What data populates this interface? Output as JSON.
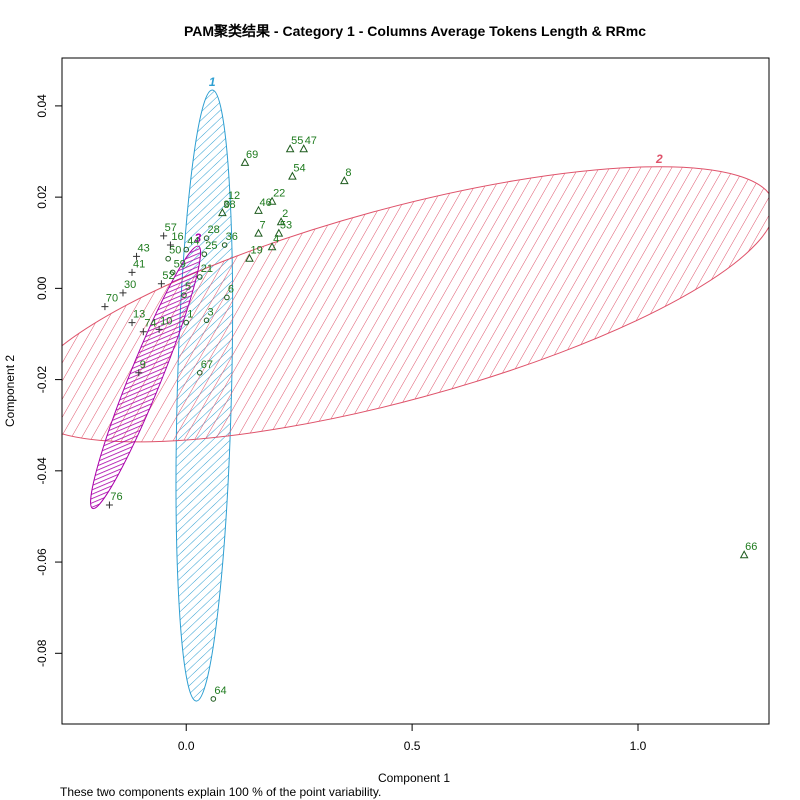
{
  "chart_data": {
    "type": "scatter",
    "title": "PAM聚类结果 - Category  1  - Columns  Average Tokens Length  &  RRmc",
    "xlabel": "Component 1",
    "ylabel": "Component 2",
    "footnote": "These two components explain 100 % of the point variability.",
    "xlim": [
      -0.275,
      1.29
    ],
    "ylim": [
      -0.0955,
      0.0505
    ],
    "x_ticks": [
      0.0,
      0.5,
      1.0
    ],
    "x_tick_labels": [
      "0.0",
      "0.5",
      "1.0"
    ],
    "y_ticks": [
      0.04,
      0.02,
      0.0,
      -0.02,
      -0.04,
      -0.06,
      -0.08
    ],
    "y_tick_labels": [
      "0.04",
      "0.02",
      "0.00",
      "-0.02",
      "-0.04",
      "-0.06",
      "-0.08"
    ],
    "colors": {
      "cluster_1": "#2E9FD2",
      "cluster_2": "#DF536B",
      "cluster_3": "#AA00AA",
      "label_color": "#1E7B1E",
      "point_color": "#1E5B1E"
    },
    "clusters": [
      {
        "id": "1",
        "label": "1",
        "color": "#2E9FD2",
        "ellipse": {
          "center": [
            0.04,
            -0.0235
          ],
          "rx": 0.06,
          "ry": 0.067,
          "angle_deg": -1.5
        },
        "marker": "circle",
        "points": [
          {
            "id": "64",
            "x": 0.06,
            "y": -0.09
          },
          {
            "id": "67",
            "x": 0.03,
            "y": -0.0185
          },
          {
            "id": "3",
            "x": 0.045,
            "y": -0.007
          },
          {
            "id": "6",
            "x": 0.09,
            "y": -0.002
          },
          {
            "id": "1",
            "x": 0.0,
            "y": -0.0075
          },
          {
            "id": "12",
            "x": 0.09,
            "y": 0.0185
          },
          {
            "id": "36",
            "x": 0.085,
            "y": 0.0095
          },
          {
            "id": "28",
            "x": 0.045,
            "y": 0.011
          },
          {
            "id": "25",
            "x": 0.04,
            "y": 0.0075
          },
          {
            "id": "44",
            "x": 0.0,
            "y": 0.0085
          },
          {
            "id": "50",
            "x": -0.04,
            "y": 0.0065
          },
          {
            "id": "59",
            "x": -0.03,
            "y": 0.0035
          },
          {
            "id": "21",
            "x": 0.03,
            "y": 0.0025
          },
          {
            "id": "5",
            "x": -0.005,
            "y": -0.0015
          }
        ]
      },
      {
        "id": "2",
        "label": "2",
        "color": "#DF536B",
        "ellipse": {
          "center": [
            0.47,
            -0.0035
          ],
          "rx": 0.86,
          "ry": 0.021,
          "angle_deg": 15.2
        },
        "marker": "triangle",
        "points": [
          {
            "id": "66",
            "x": 1.235,
            "y": -0.0585
          },
          {
            "id": "8",
            "x": 0.35,
            "y": 0.0235
          },
          {
            "id": "55",
            "x": 0.23,
            "y": 0.0305
          },
          {
            "id": "47",
            "x": 0.26,
            "y": 0.0305
          },
          {
            "id": "69",
            "x": 0.13,
            "y": 0.0275
          },
          {
            "id": "54",
            "x": 0.235,
            "y": 0.0245
          },
          {
            "id": "22",
            "x": 0.19,
            "y": 0.019
          },
          {
            "id": "46",
            "x": 0.16,
            "y": 0.017
          },
          {
            "id": "2",
            "x": 0.21,
            "y": 0.0145
          },
          {
            "id": "53",
            "x": 0.205,
            "y": 0.012
          },
          {
            "id": "7",
            "x": 0.16,
            "y": 0.012
          },
          {
            "id": "4",
            "x": 0.19,
            "y": 0.009
          },
          {
            "id": "19",
            "x": 0.14,
            "y": 0.0065
          },
          {
            "id": "38",
            "x": 0.08,
            "y": 0.0165
          }
        ]
      },
      {
        "id": "3",
        "label": "3",
        "color": "#AA00AA",
        "ellipse": {
          "center": [
            -0.09,
            -0.0195
          ],
          "rx": 0.035,
          "ry": 0.031,
          "angle_deg": -22
        },
        "marker": "plus",
        "points": [
          {
            "id": "76",
            "x": -0.17,
            "y": -0.0475
          },
          {
            "id": "9",
            "x": -0.105,
            "y": -0.0185
          },
          {
            "id": "13",
            "x": -0.12,
            "y": -0.0075
          },
          {
            "id": "70",
            "x": -0.18,
            "y": -0.004
          },
          {
            "id": "74",
            "x": -0.095,
            "y": -0.0095
          },
          {
            "id": "10",
            "x": -0.06,
            "y": -0.009
          },
          {
            "id": "43",
            "x": -0.11,
            "y": 0.007
          },
          {
            "id": "57",
            "x": -0.05,
            "y": 0.0115
          },
          {
            "id": "16",
            "x": -0.035,
            "y": 0.0095
          },
          {
            "id": "41",
            "x": -0.12,
            "y": 0.0035
          },
          {
            "id": "52",
            "x": -0.055,
            "y": 0.001
          },
          {
            "id": "30",
            "x": -0.14,
            "y": -0.001
          }
        ]
      }
    ]
  }
}
